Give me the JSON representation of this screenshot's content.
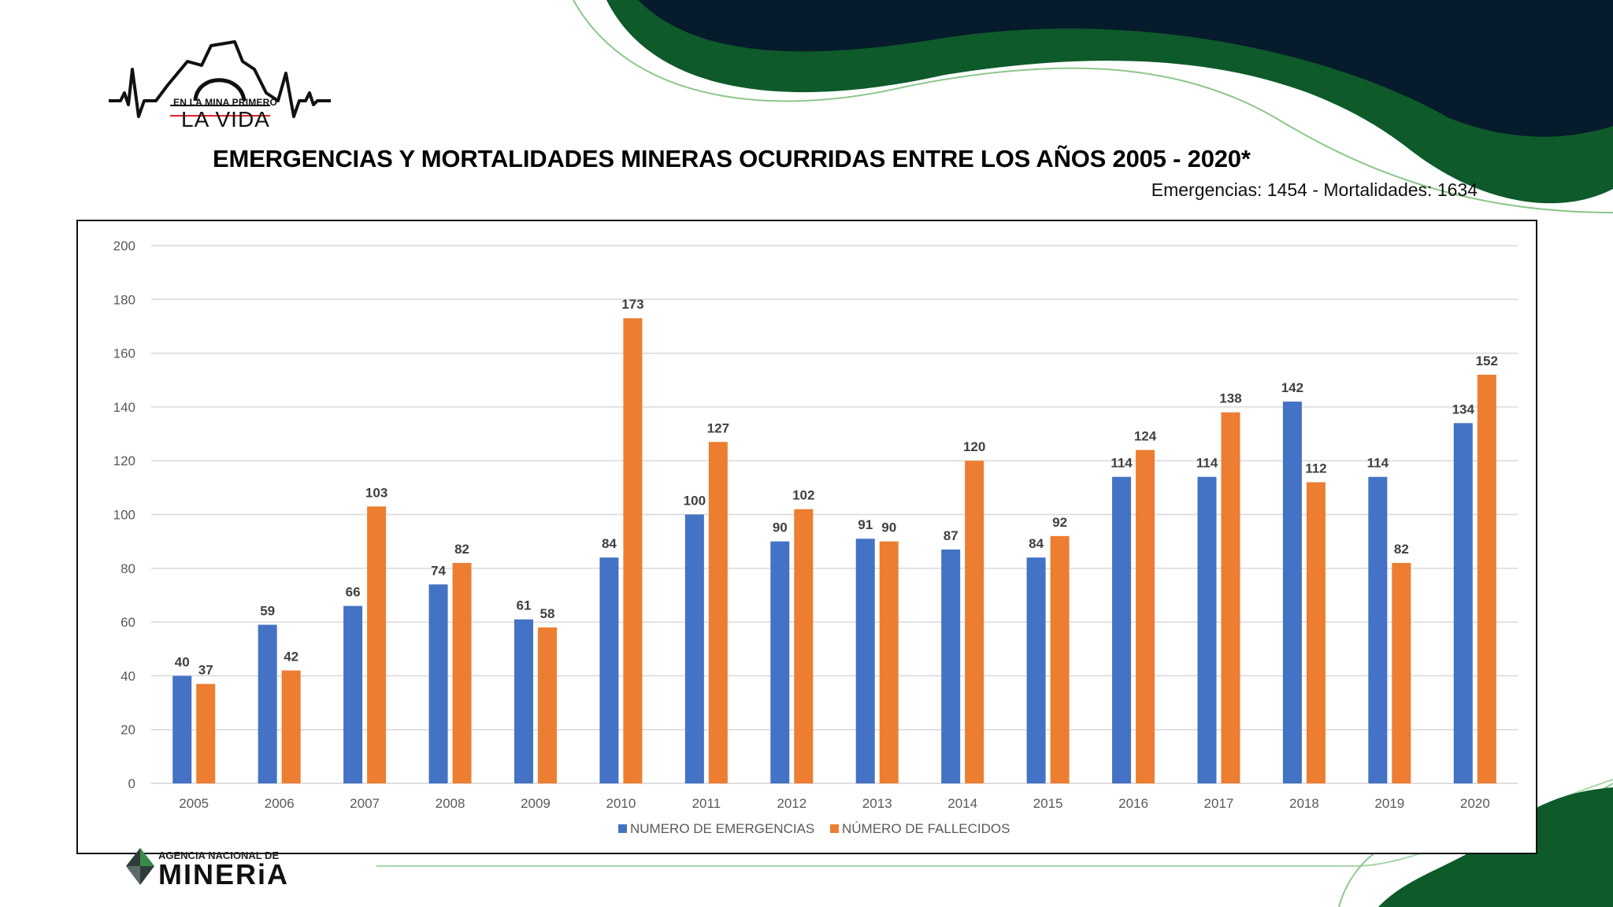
{
  "header": {
    "logo_tagline": "EN LA MINA PRIMERO",
    "logo_name": "LA VIDA",
    "title": "EMERGENCIAS Y MORTALIDADES MINERAS OCURRIDAS ENTRE LOS AÑOS 2005 - 2020*",
    "subtitle": "Emergencias: 1454 - Mortalidades: 1634"
  },
  "footer": {
    "agency_line1": "AGENCIA NACIONAL DE",
    "agency_line2": "MINERiA"
  },
  "colors": {
    "emergencias": "#4472C4",
    "fallecidos": "#ED7D31",
    "dark_navy": "#061B2B",
    "dark_green": "#0E5A2A",
    "light_green": "#8CC68C"
  },
  "chart_data": {
    "type": "bar",
    "categories": [
      "2005",
      "2006",
      "2007",
      "2008",
      "2009",
      "2010",
      "2011",
      "2012",
      "2013",
      "2014",
      "2015",
      "2016",
      "2017",
      "2018",
      "2019",
      "2020"
    ],
    "series": [
      {
        "name": "NUMERO DE EMERGENCIAS",
        "values": [
          40,
          59,
          66,
          74,
          61,
          84,
          100,
          90,
          91,
          87,
          84,
          114,
          114,
          142,
          114,
          134
        ]
      },
      {
        "name": "NÚMERO DE FALLECIDOS",
        "values": [
          37,
          42,
          103,
          82,
          58,
          173,
          127,
          102,
          90,
          120,
          92,
          124,
          138,
          112,
          82,
          152
        ]
      }
    ],
    "ylim": [
      0,
      200
    ],
    "yticks": [
      0,
      20,
      40,
      60,
      80,
      100,
      120,
      140,
      160,
      180,
      200
    ],
    "grid": true,
    "legend": "bottom"
  }
}
